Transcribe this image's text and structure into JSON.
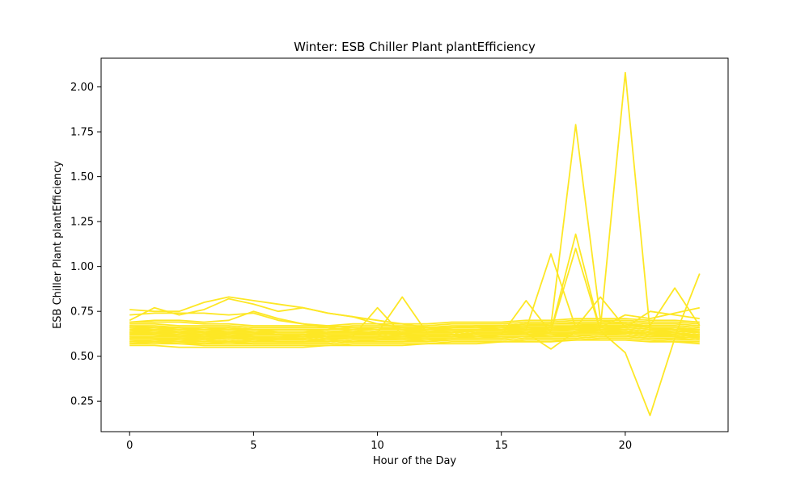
{
  "chart_data": {
    "type": "line",
    "title": "Winter: ESB Chiller Plant plantEfficiency",
    "xlabel": "Hour of the Day",
    "ylabel": "ESB Chiller Plant plantEfficiency",
    "xlim": [
      -1.15,
      24.15
    ],
    "ylim": [
      0.08,
      2.16
    ],
    "xticks": [
      0,
      5,
      10,
      15,
      20
    ],
    "yticks": [
      0.25,
      0.5,
      0.75,
      1.0,
      1.25,
      1.5,
      1.75,
      2.0
    ],
    "ytick_labels": [
      "0.25",
      "0.50",
      "0.75",
      "1.00",
      "1.25",
      "1.50",
      "1.75",
      "2.00"
    ],
    "grid": false,
    "legend": "none",
    "line_color": "#fde725",
    "x": [
      0,
      1,
      2,
      3,
      4,
      5,
      6,
      7,
      8,
      9,
      10,
      11,
      12,
      13,
      14,
      15,
      16,
      17,
      18,
      19,
      20,
      21,
      22,
      23
    ],
    "series": [
      {
        "values": [
          0.76,
          0.75,
          0.75,
          0.8,
          0.83,
          0.81,
          0.79,
          0.77,
          0.74,
          0.72,
          0.68,
          0.66,
          0.65,
          0.66,
          0.66,
          0.67,
          0.68,
          0.67,
          1.79,
          0.7,
          0.68,
          0.66,
          0.65,
          0.64
        ]
      },
      {
        "values": [
          0.64,
          0.65,
          0.64,
          0.63,
          0.64,
          0.63,
          0.62,
          0.62,
          0.63,
          0.63,
          0.62,
          0.63,
          0.63,
          0.64,
          0.64,
          0.64,
          0.65,
          0.65,
          0.66,
          0.66,
          2.08,
          0.64,
          0.63,
          0.62
        ]
      },
      {
        "values": [
          0.62,
          0.62,
          0.61,
          0.61,
          0.62,
          0.61,
          0.6,
          0.6,
          0.61,
          0.61,
          0.61,
          0.62,
          0.62,
          0.62,
          0.63,
          0.63,
          0.64,
          0.64,
          0.65,
          0.64,
          0.52,
          0.17,
          0.6,
          0.61
        ]
      },
      {
        "values": [
          0.63,
          0.63,
          0.62,
          0.62,
          0.62,
          0.61,
          0.61,
          0.61,
          0.62,
          0.62,
          0.62,
          0.63,
          0.63,
          0.63,
          0.64,
          0.64,
          0.65,
          1.07,
          0.66,
          0.65,
          0.64,
          0.63,
          0.62,
          0.62
        ]
      },
      {
        "values": [
          0.61,
          0.61,
          0.61,
          0.6,
          0.61,
          0.6,
          0.6,
          0.6,
          0.61,
          0.61,
          0.61,
          0.62,
          0.62,
          0.62,
          0.63,
          0.63,
          0.63,
          0.64,
          1.18,
          0.64,
          0.64,
          0.63,
          0.62,
          0.61
        ]
      },
      {
        "values": [
          0.62,
          0.62,
          0.61,
          0.61,
          0.61,
          0.61,
          0.6,
          0.6,
          0.61,
          0.61,
          0.61,
          0.62,
          0.62,
          0.62,
          0.63,
          0.63,
          0.64,
          0.64,
          1.1,
          0.64,
          0.63,
          0.63,
          0.62,
          0.61
        ]
      },
      {
        "values": [
          0.6,
          0.6,
          0.59,
          0.59,
          0.6,
          0.59,
          0.59,
          0.59,
          0.6,
          0.6,
          0.6,
          0.61,
          0.61,
          0.61,
          0.62,
          0.62,
          0.62,
          0.63,
          0.63,
          0.63,
          0.63,
          0.62,
          0.61,
          0.96
        ]
      },
      {
        "values": [
          0.66,
          0.66,
          0.65,
          0.65,
          0.66,
          0.65,
          0.64,
          0.64,
          0.65,
          0.65,
          0.65,
          0.66,
          0.66,
          0.66,
          0.67,
          0.67,
          0.68,
          0.68,
          0.68,
          0.68,
          0.68,
          0.67,
          0.88,
          0.67
        ]
      },
      {
        "values": [
          0.64,
          0.64,
          0.63,
          0.63,
          0.63,
          0.63,
          0.62,
          0.62,
          0.63,
          0.63,
          0.63,
          0.64,
          0.64,
          0.64,
          0.64,
          0.65,
          0.65,
          0.66,
          0.66,
          0.83,
          0.66,
          0.65,
          0.64,
          0.64
        ]
      },
      {
        "values": [
          0.61,
          0.61,
          0.61,
          0.61,
          0.61,
          0.6,
          0.6,
          0.6,
          0.61,
          0.61,
          0.61,
          0.61,
          0.62,
          0.62,
          0.62,
          0.62,
          0.81,
          0.63,
          0.63,
          0.63,
          0.63,
          0.62,
          0.62,
          0.61
        ]
      },
      {
        "values": [
          0.63,
          0.63,
          0.63,
          0.62,
          0.62,
          0.62,
          0.62,
          0.62,
          0.62,
          0.62,
          0.63,
          0.83,
          0.63,
          0.63,
          0.64,
          0.64,
          0.64,
          0.65,
          0.65,
          0.65,
          0.65,
          0.64,
          0.64,
          0.63
        ]
      },
      {
        "values": [
          0.62,
          0.62,
          0.62,
          0.61,
          0.61,
          0.61,
          0.61,
          0.61,
          0.61,
          0.61,
          0.77,
          0.62,
          0.62,
          0.62,
          0.63,
          0.63,
          0.63,
          0.54,
          0.64,
          0.64,
          0.64,
          0.63,
          0.63,
          0.62
        ]
      },
      {
        "values": [
          0.73,
          0.74,
          0.74,
          0.74,
          0.73,
          0.74,
          0.7,
          0.68,
          0.66,
          0.64,
          0.63,
          0.62,
          0.62,
          0.62,
          0.63,
          0.63,
          0.64,
          0.65,
          0.66,
          0.66,
          0.73,
          0.71,
          0.74,
          0.77
        ]
      },
      {
        "values": [
          0.7,
          0.77,
          0.73,
          0.76,
          0.82,
          0.79,
          0.75,
          0.77,
          0.74,
          0.72,
          0.7,
          0.68,
          0.66,
          0.65,
          0.65,
          0.66,
          0.66,
          0.66,
          0.67,
          0.67,
          0.66,
          0.75,
          0.73,
          0.71
        ]
      },
      {
        "values": [
          0.69,
          0.7,
          0.7,
          0.69,
          0.7,
          0.75,
          0.71,
          0.68,
          0.67,
          0.66,
          0.65,
          0.65,
          0.64,
          0.64,
          0.65,
          0.65,
          0.66,
          0.66,
          0.67,
          0.67,
          0.67,
          0.66,
          0.65,
          0.65
        ]
      },
      {
        "values": [
          0.56,
          0.56,
          0.55,
          0.55,
          0.55,
          0.55,
          0.55,
          0.55,
          0.56,
          0.56,
          0.56,
          0.56,
          0.57,
          0.57,
          0.57,
          0.58,
          0.58,
          0.58,
          0.59,
          0.59,
          0.59,
          0.58,
          0.58,
          0.57
        ]
      },
      {
        "values": [
          0.57,
          0.57,
          0.57,
          0.56,
          0.56,
          0.56,
          0.56,
          0.56,
          0.56,
          0.57,
          0.57,
          0.57,
          0.57,
          0.58,
          0.58,
          0.58,
          0.59,
          0.59,
          0.59,
          0.6,
          0.6,
          0.59,
          0.58,
          0.58
        ]
      },
      {
        "values": [
          0.58,
          0.58,
          0.58,
          0.57,
          0.58,
          0.57,
          0.57,
          0.57,
          0.57,
          0.58,
          0.58,
          0.58,
          0.59,
          0.59,
          0.59,
          0.59,
          0.6,
          0.6,
          0.6,
          0.61,
          0.61,
          0.6,
          0.6,
          0.59
        ]
      },
      {
        "values": [
          0.59,
          0.59,
          0.59,
          0.58,
          0.59,
          0.58,
          0.58,
          0.58,
          0.58,
          0.59,
          0.59,
          0.59,
          0.6,
          0.6,
          0.6,
          0.61,
          0.61,
          0.61,
          0.62,
          0.62,
          0.62,
          0.61,
          0.61,
          0.6
        ]
      },
      {
        "values": [
          0.6,
          0.6,
          0.6,
          0.59,
          0.6,
          0.59,
          0.59,
          0.59,
          0.59,
          0.6,
          0.6,
          0.6,
          0.61,
          0.61,
          0.61,
          0.62,
          0.62,
          0.62,
          0.63,
          0.63,
          0.63,
          0.62,
          0.62,
          0.61
        ]
      },
      {
        "values": [
          0.64,
          0.64,
          0.64,
          0.63,
          0.63,
          0.63,
          0.63,
          0.63,
          0.63,
          0.63,
          0.64,
          0.64,
          0.64,
          0.65,
          0.65,
          0.65,
          0.66,
          0.66,
          0.66,
          0.67,
          0.67,
          0.66,
          0.66,
          0.65
        ]
      },
      {
        "values": [
          0.65,
          0.65,
          0.65,
          0.64,
          0.64,
          0.64,
          0.64,
          0.64,
          0.64,
          0.64,
          0.65,
          0.65,
          0.65,
          0.66,
          0.66,
          0.66,
          0.67,
          0.67,
          0.67,
          0.68,
          0.68,
          0.67,
          0.67,
          0.66
        ]
      },
      {
        "values": [
          0.67,
          0.67,
          0.66,
          0.66,
          0.66,
          0.65,
          0.65,
          0.65,
          0.65,
          0.66,
          0.66,
          0.66,
          0.66,
          0.67,
          0.67,
          0.67,
          0.68,
          0.68,
          0.69,
          0.69,
          0.69,
          0.68,
          0.68,
          0.67
        ]
      },
      {
        "values": [
          0.68,
          0.68,
          0.67,
          0.67,
          0.67,
          0.66,
          0.66,
          0.66,
          0.66,
          0.67,
          0.67,
          0.67,
          0.67,
          0.68,
          0.68,
          0.68,
          0.69,
          0.69,
          0.7,
          0.7,
          0.7,
          0.69,
          0.69,
          0.68
        ]
      },
      {
        "values": [
          0.69,
          0.69,
          0.69,
          0.68,
          0.68,
          0.67,
          0.67,
          0.67,
          0.67,
          0.68,
          0.68,
          0.68,
          0.68,
          0.69,
          0.69,
          0.69,
          0.7,
          0.7,
          0.71,
          0.71,
          0.71,
          0.7,
          0.7,
          0.69
        ]
      },
      {
        "values": [
          0.63,
          0.62,
          0.62,
          0.61,
          0.62,
          0.61,
          0.61,
          0.6,
          0.61,
          0.62,
          0.62,
          0.63,
          0.61,
          0.62,
          0.63,
          0.63,
          0.63,
          0.64,
          0.64,
          0.65,
          0.64,
          0.63,
          0.63,
          0.62
        ]
      },
      {
        "values": [
          0.58,
          0.59,
          0.6,
          0.59,
          0.58,
          0.59,
          0.58,
          0.58,
          0.59,
          0.58,
          0.59,
          0.6,
          0.6,
          0.6,
          0.61,
          0.61,
          0.61,
          0.62,
          0.62,
          0.62,
          0.63,
          0.62,
          0.61,
          0.6
        ]
      },
      {
        "values": [
          0.66,
          0.65,
          0.64,
          0.64,
          0.65,
          0.64,
          0.63,
          0.63,
          0.64,
          0.63,
          0.64,
          0.64,
          0.65,
          0.65,
          0.65,
          0.65,
          0.66,
          0.66,
          0.67,
          0.67,
          0.67,
          0.66,
          0.65,
          0.65
        ]
      },
      {
        "values": [
          0.61,
          0.6,
          0.6,
          0.6,
          0.6,
          0.6,
          0.59,
          0.59,
          0.6,
          0.6,
          0.6,
          0.6,
          0.61,
          0.61,
          0.62,
          0.62,
          0.62,
          0.63,
          0.63,
          0.63,
          0.63,
          0.62,
          0.62,
          0.61
        ]
      },
      {
        "values": [
          0.59,
          0.59,
          0.58,
          0.58,
          0.58,
          0.58,
          0.58,
          0.58,
          0.58,
          0.59,
          0.59,
          0.59,
          0.59,
          0.6,
          0.6,
          0.6,
          0.61,
          0.61,
          0.61,
          0.62,
          0.62,
          0.61,
          0.61,
          0.6
        ]
      },
      {
        "values": [
          0.62,
          0.63,
          0.62,
          0.62,
          0.63,
          0.62,
          0.62,
          0.61,
          0.62,
          0.62,
          0.62,
          0.63,
          0.63,
          0.63,
          0.64,
          0.64,
          0.64,
          0.65,
          0.65,
          0.66,
          0.65,
          0.64,
          0.64,
          0.63
        ]
      },
      {
        "values": [
          0.65,
          0.64,
          0.63,
          0.63,
          0.63,
          0.63,
          0.62,
          0.62,
          0.63,
          0.63,
          0.63,
          0.63,
          0.64,
          0.64,
          0.64,
          0.65,
          0.65,
          0.65,
          0.66,
          0.66,
          0.66,
          0.65,
          0.65,
          0.64
        ]
      },
      {
        "values": [
          0.6,
          0.61,
          0.61,
          0.6,
          0.6,
          0.6,
          0.6,
          0.59,
          0.6,
          0.6,
          0.61,
          0.61,
          0.61,
          0.62,
          0.62,
          0.62,
          0.63,
          0.63,
          0.63,
          0.64,
          0.64,
          0.63,
          0.62,
          0.62
        ]
      },
      {
        "values": [
          0.57,
          0.58,
          0.57,
          0.57,
          0.57,
          0.57,
          0.57,
          0.57,
          0.57,
          0.58,
          0.58,
          0.58,
          0.58,
          0.59,
          0.59,
          0.59,
          0.6,
          0.6,
          0.6,
          0.61,
          0.61,
          0.6,
          0.59,
          0.59
        ]
      },
      {
        "values": [
          0.67,
          0.66,
          0.66,
          0.65,
          0.65,
          0.65,
          0.64,
          0.64,
          0.65,
          0.65,
          0.65,
          0.66,
          0.66,
          0.66,
          0.67,
          0.67,
          0.67,
          0.68,
          0.68,
          0.68,
          0.68,
          0.67,
          0.67,
          0.66
        ]
      },
      {
        "values": [
          0.63,
          0.64,
          0.64,
          0.63,
          0.62,
          0.62,
          0.62,
          0.62,
          0.62,
          0.62,
          0.63,
          0.63,
          0.63,
          0.64,
          0.64,
          0.64,
          0.64,
          0.65,
          0.65,
          0.65,
          0.65,
          0.64,
          0.64,
          0.63
        ]
      }
    ]
  }
}
